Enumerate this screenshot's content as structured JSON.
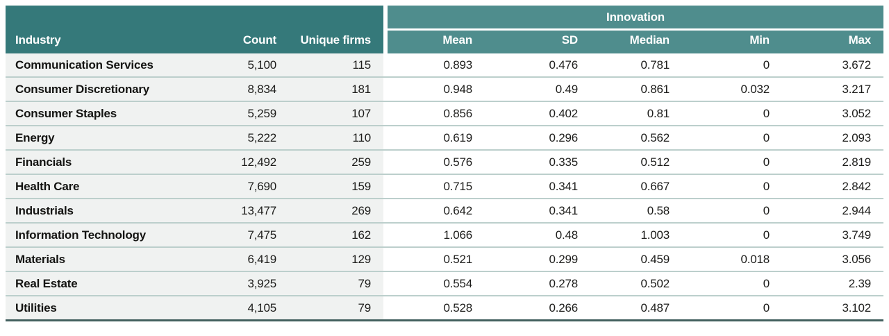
{
  "header": {
    "industry": "Industry",
    "count": "Count",
    "unique_firms": "Unique firms",
    "group": "Innovation",
    "sub": {
      "mean": "Mean",
      "sd": "SD",
      "median": "Median",
      "min": "Min",
      "max": "Max"
    }
  },
  "chart_data": {
    "type": "table",
    "title": "Innovation",
    "columns": [
      "Industry",
      "Count",
      "Unique firms",
      "Mean",
      "SD",
      "Median",
      "Min",
      "Max"
    ],
    "group_header": {
      "label": "Innovation",
      "spans": [
        "Mean",
        "SD",
        "Median",
        "Min",
        "Max"
      ]
    },
    "rows": [
      {
        "industry": "Communication Services",
        "count": "5,100",
        "unique_firms": "115",
        "mean": "0.893",
        "sd": "0.476",
        "median": "0.781",
        "min": "0",
        "max": "3.672"
      },
      {
        "industry": "Consumer Discretionary",
        "count": "8,834",
        "unique_firms": "181",
        "mean": "0.948",
        "sd": "0.49",
        "median": "0.861",
        "min": "0.032",
        "max": "3.217"
      },
      {
        "industry": "Consumer Staples",
        "count": "5,259",
        "unique_firms": "107",
        "mean": "0.856",
        "sd": "0.402",
        "median": "0.81",
        "min": "0",
        "max": "3.052"
      },
      {
        "industry": "Energy",
        "count": "5,222",
        "unique_firms": "110",
        "mean": "0.619",
        "sd": "0.296",
        "median": "0.562",
        "min": "0",
        "max": "2.093"
      },
      {
        "industry": "Financials",
        "count": "12,492",
        "unique_firms": "259",
        "mean": "0.576",
        "sd": "0.335",
        "median": "0.512",
        "min": "0",
        "max": "2.819"
      },
      {
        "industry": "Health Care",
        "count": "7,690",
        "unique_firms": "159",
        "mean": "0.715",
        "sd": "0.341",
        "median": "0.667",
        "min": "0",
        "max": "2.842"
      },
      {
        "industry": "Industrials",
        "count": "13,477",
        "unique_firms": "269",
        "mean": "0.642",
        "sd": "0.341",
        "median": "0.58",
        "min": "0",
        "max": "2.944"
      },
      {
        "industry": "Information Technology",
        "count": "7,475",
        "unique_firms": "162",
        "mean": "1.066",
        "sd": "0.48",
        "median": "1.003",
        "min": "0",
        "max": "3.749"
      },
      {
        "industry": "Materials",
        "count": "6,419",
        "unique_firms": "129",
        "mean": "0.521",
        "sd": "0.299",
        "median": "0.459",
        "min": "0.018",
        "max": "3.056"
      },
      {
        "industry": "Real Estate",
        "count": "3,925",
        "unique_firms": "79",
        "mean": "0.554",
        "sd": "0.278",
        "median": "0.502",
        "min": "0",
        "max": "2.39"
      },
      {
        "industry": "Utilities",
        "count": "4,105",
        "unique_firms": "79",
        "mean": "0.528",
        "sd": "0.266",
        "median": "0.487",
        "min": "0",
        "max": "3.102"
      }
    ]
  },
  "colors": {
    "header_dark_teal": "#35797a",
    "header_light_teal": "#4f8d8d",
    "row_left_bg": "#f0f2f1",
    "row_right_bg": "#ffffff",
    "row_separator": "#bccfcc",
    "bottom_rule": "#42605e",
    "header_text": "#ffffff",
    "body_text": "#1d1d1b"
  }
}
